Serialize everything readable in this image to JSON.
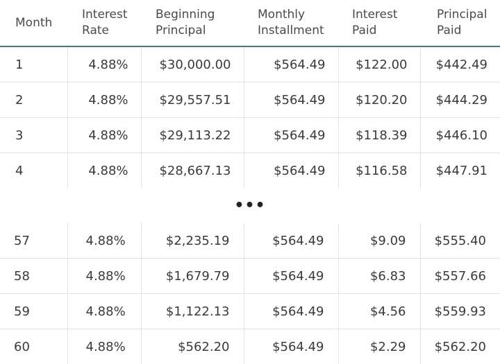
{
  "headers": {
    "month": "Month",
    "interest_rate": [
      "Interest",
      "Rate"
    ],
    "beginning_principal": [
      "Beginning",
      "Principal"
    ],
    "monthly_installment": [
      "Monthly",
      "Installment"
    ],
    "interest_paid": [
      "Interest",
      "Paid"
    ],
    "principal_paid": [
      "Principal",
      "Paid"
    ]
  },
  "top_rows": [
    {
      "month": "1",
      "rate": "4.88%",
      "begin": "$30,000.00",
      "installment": "$564.49",
      "interest": "$122.00",
      "principal": "$442.49"
    },
    {
      "month": "2",
      "rate": "4.88%",
      "begin": "$29,557.51",
      "installment": "$564.49",
      "interest": "$120.20",
      "principal": "$444.29"
    },
    {
      "month": "3",
      "rate": "4.88%",
      "begin": "$29,113.22",
      "installment": "$564.49",
      "interest": "$118.39",
      "principal": "$446.10"
    },
    {
      "month": "4",
      "rate": "4.88%",
      "begin": "$28,667.13",
      "installment": "$564.49",
      "interest": "$116.58",
      "principal": "$447.91"
    }
  ],
  "ellipsis": "•••",
  "bottom_rows": [
    {
      "month": "57",
      "rate": "4.88%",
      "begin": "$2,235.19",
      "installment": "$564.49",
      "interest": "$9.09",
      "principal": "$555.40"
    },
    {
      "month": "58",
      "rate": "4.88%",
      "begin": "$1,679.79",
      "installment": "$564.49",
      "interest": "$6.83",
      "principal": "$557.66"
    },
    {
      "month": "59",
      "rate": "4.88%",
      "begin": "$1,122.13",
      "installment": "$564.49",
      "interest": "$4.56",
      "principal": "$559.93"
    },
    {
      "month": "60",
      "rate": "4.88%",
      "begin": "$562.20",
      "installment": "$564.49",
      "interest": "$2.29",
      "principal": "$562.20"
    }
  ]
}
